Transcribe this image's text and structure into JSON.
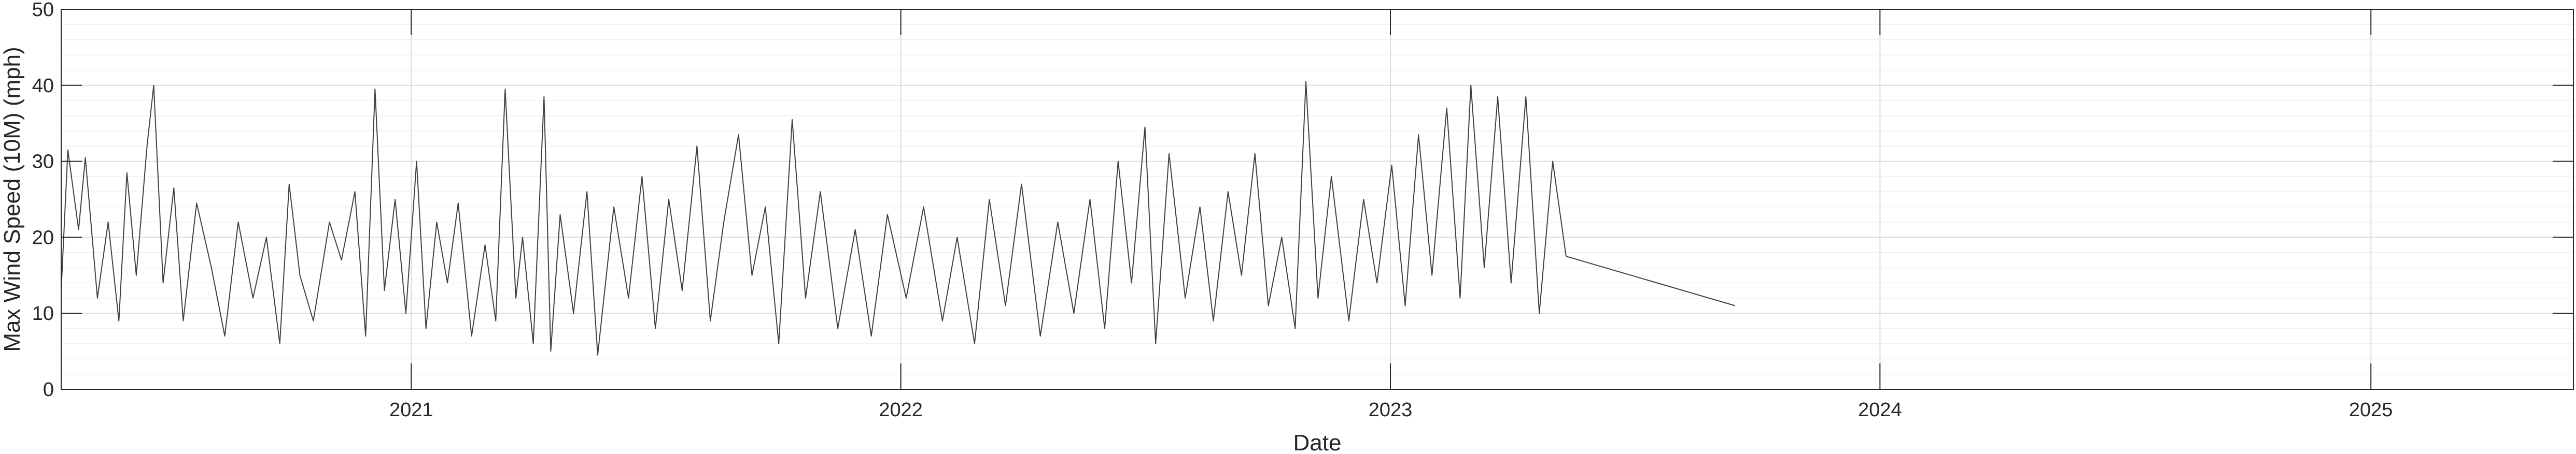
{
  "chart_data": {
    "type": "line",
    "title": "",
    "xlabel": "Date",
    "ylabel": "Max Wind Speed (10M) (mph)",
    "xlim": [
      "2020-04-15",
      "2025-06-01"
    ],
    "ylim": [
      0,
      50
    ],
    "xticks": [
      "2021",
      "2022",
      "2023",
      "2024",
      "2025"
    ],
    "yticks": [
      "0",
      "10",
      "20",
      "30",
      "40",
      "50"
    ],
    "grid": true,
    "minor_grid": true,
    "line_color": "#404040",
    "gap": {
      "from": "2023-05-12",
      "to": "2023-09-15",
      "from_value": 17.5,
      "to_value": 11
    },
    "series": [
      {
        "values": [
          [
            "2020-04-15",
            13
          ],
          [
            "2020-04-20",
            31.5
          ],
          [
            "2020-04-28",
            21
          ],
          [
            "2020-05-03",
            30.5
          ],
          [
            "2020-05-12",
            12
          ],
          [
            "2020-05-20",
            22
          ],
          [
            "2020-05-28",
            9
          ],
          [
            "2020-06-03",
            28.5
          ],
          [
            "2020-06-10",
            15
          ],
          [
            "2020-06-18",
            32
          ],
          [
            "2020-06-23",
            40
          ],
          [
            "2020-06-30",
            14
          ],
          [
            "2020-07-08",
            26.5
          ],
          [
            "2020-07-15",
            9
          ],
          [
            "2020-07-25",
            24.5
          ],
          [
            "2020-08-05",
            16
          ],
          [
            "2020-08-15",
            7
          ],
          [
            "2020-08-25",
            22
          ],
          [
            "2020-09-05",
            12
          ],
          [
            "2020-09-15",
            20
          ],
          [
            "2020-09-25",
            6
          ],
          [
            "2020-10-02",
            27
          ],
          [
            "2020-10-10",
            15
          ],
          [
            "2020-10-20",
            9
          ],
          [
            "2020-11-01",
            22
          ],
          [
            "2020-11-10",
            17
          ],
          [
            "2020-11-20",
            26
          ],
          [
            "2020-11-28",
            7
          ],
          [
            "2020-12-05",
            39.5
          ],
          [
            "2020-12-12",
            13
          ],
          [
            "2020-12-20",
            25
          ],
          [
            "2020-12-28",
            10
          ],
          [
            "2021-01-05",
            30
          ],
          [
            "2021-01-12",
            8
          ],
          [
            "2021-01-20",
            22
          ],
          [
            "2021-01-28",
            14
          ],
          [
            "2021-02-05",
            24.5
          ],
          [
            "2021-02-15",
            7
          ],
          [
            "2021-02-25",
            19
          ],
          [
            "2021-03-05",
            9
          ],
          [
            "2021-03-12",
            39.5
          ],
          [
            "2021-03-20",
            12
          ],
          [
            "2021-03-25",
            20
          ],
          [
            "2021-04-02",
            6
          ],
          [
            "2021-04-10",
            38.5
          ],
          [
            "2021-04-15",
            5
          ],
          [
            "2021-04-22",
            23
          ],
          [
            "2021-05-02",
            10
          ],
          [
            "2021-05-12",
            26
          ],
          [
            "2021-05-20",
            4.5
          ],
          [
            "2021-06-01",
            24
          ],
          [
            "2021-06-12",
            12
          ],
          [
            "2021-06-22",
            28
          ],
          [
            "2021-07-02",
            8
          ],
          [
            "2021-07-12",
            25
          ],
          [
            "2021-07-22",
            13
          ],
          [
            "2021-08-02",
            32
          ],
          [
            "2021-08-12",
            9
          ],
          [
            "2021-08-22",
            22
          ],
          [
            "2021-09-02",
            33.5
          ],
          [
            "2021-09-12",
            15
          ],
          [
            "2021-09-22",
            24
          ],
          [
            "2021-10-02",
            6
          ],
          [
            "2021-10-12",
            35.5
          ],
          [
            "2021-10-22",
            12
          ],
          [
            "2021-11-02",
            26
          ],
          [
            "2021-11-15",
            8
          ],
          [
            "2021-11-28",
            21
          ],
          [
            "2021-12-10",
            7
          ],
          [
            "2021-12-22",
            23
          ],
          [
            "2022-01-05",
            12
          ],
          [
            "2022-01-18",
            24
          ],
          [
            "2022-02-01",
            9
          ],
          [
            "2022-02-12",
            20
          ],
          [
            "2022-02-25",
            6
          ],
          [
            "2022-03-08",
            25
          ],
          [
            "2022-03-20",
            11
          ],
          [
            "2022-04-01",
            27
          ],
          [
            "2022-04-15",
            7
          ],
          [
            "2022-04-28",
            22
          ],
          [
            "2022-05-10",
            10
          ],
          [
            "2022-05-22",
            25
          ],
          [
            "2022-06-02",
            8
          ],
          [
            "2022-06-12",
            30
          ],
          [
            "2022-06-22",
            14
          ],
          [
            "2022-07-02",
            34.5
          ],
          [
            "2022-07-10",
            6
          ],
          [
            "2022-07-20",
            31
          ],
          [
            "2022-08-01",
            12
          ],
          [
            "2022-08-12",
            24
          ],
          [
            "2022-08-22",
            9
          ],
          [
            "2022-09-02",
            26
          ],
          [
            "2022-09-12",
            15
          ],
          [
            "2022-09-22",
            31
          ],
          [
            "2022-10-02",
            11
          ],
          [
            "2022-10-12",
            20
          ],
          [
            "2022-10-22",
            8
          ],
          [
            "2022-10-30",
            40.5
          ],
          [
            "2022-11-08",
            12
          ],
          [
            "2022-11-18",
            28
          ],
          [
            "2022-12-01",
            9
          ],
          [
            "2022-12-12",
            25
          ],
          [
            "2022-12-22",
            14
          ],
          [
            "2023-01-02",
            29.5
          ],
          [
            "2023-01-12",
            11
          ],
          [
            "2023-01-22",
            33.5
          ],
          [
            "2023-02-01",
            15
          ],
          [
            "2023-02-12",
            37
          ],
          [
            "2023-02-22",
            12
          ],
          [
            "2023-03-02",
            40
          ],
          [
            "2023-03-12",
            16
          ],
          [
            "2023-03-22",
            38.5
          ],
          [
            "2023-04-01",
            14
          ],
          [
            "2023-04-12",
            38.5
          ],
          [
            "2023-04-22",
            10
          ],
          [
            "2023-05-02",
            30
          ],
          [
            "2023-05-12",
            17.5
          ]
        ]
      }
    ]
  }
}
